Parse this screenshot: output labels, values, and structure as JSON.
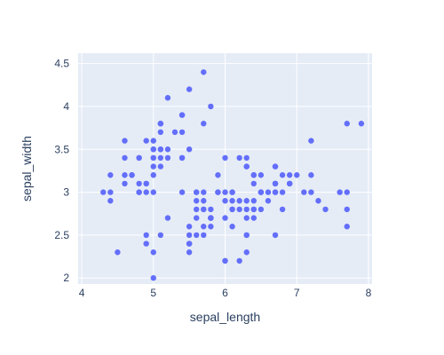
{
  "chart_data": {
    "type": "scatter",
    "title": "",
    "xlabel": "sepal_length",
    "ylabel": "sepal_width",
    "xlim": [
      4.0,
      8.0
    ],
    "ylim": [
      2.0,
      4.5
    ],
    "x_ticks": [
      4,
      5,
      6,
      7,
      8
    ],
    "y_ticks": [
      2,
      2.5,
      3,
      3.5,
      4,
      4.5
    ],
    "x_tick_labels": [
      "4",
      "5",
      "6",
      "7",
      "8"
    ],
    "y_tick_labels": [
      "2",
      "2.5",
      "3",
      "3.5",
      "4",
      "4.5"
    ],
    "grid": true,
    "legend": "none",
    "colors": {
      "plot_background": "#e5ecf6",
      "grid": "#ffffff",
      "marker": "#636efa",
      "text": "#2a3f5f"
    },
    "series": [
      {
        "points": [
          [
            5.1,
            3.5
          ],
          [
            4.9,
            3.0
          ],
          [
            4.7,
            3.2
          ],
          [
            4.6,
            3.1
          ],
          [
            5.0,
            3.6
          ],
          [
            5.4,
            3.9
          ],
          [
            4.6,
            3.4
          ],
          [
            5.0,
            3.4
          ],
          [
            4.4,
            2.9
          ],
          [
            4.9,
            3.1
          ],
          [
            5.4,
            3.7
          ],
          [
            4.8,
            3.4
          ],
          [
            4.8,
            3.0
          ],
          [
            4.3,
            3.0
          ],
          [
            5.8,
            4.0
          ],
          [
            5.7,
            4.4
          ],
          [
            5.4,
            3.9
          ],
          [
            5.1,
            3.5
          ],
          [
            5.7,
            3.8
          ],
          [
            5.1,
            3.8
          ],
          [
            5.4,
            3.4
          ],
          [
            5.1,
            3.7
          ],
          [
            4.6,
            3.6
          ],
          [
            5.1,
            3.3
          ],
          [
            4.8,
            3.4
          ],
          [
            5.0,
            3.0
          ],
          [
            5.0,
            3.4
          ],
          [
            5.2,
            3.5
          ],
          [
            5.2,
            3.4
          ],
          [
            4.7,
            3.2
          ],
          [
            4.8,
            3.1
          ],
          [
            5.4,
            3.4
          ],
          [
            5.2,
            4.1
          ],
          [
            5.5,
            4.2
          ],
          [
            4.9,
            3.1
          ],
          [
            5.0,
            3.2
          ],
          [
            5.5,
            3.5
          ],
          [
            4.9,
            3.6
          ],
          [
            4.4,
            3.0
          ],
          [
            5.1,
            3.4
          ],
          [
            5.0,
            3.5
          ],
          [
            4.5,
            2.3
          ],
          [
            4.4,
            3.2
          ],
          [
            5.0,
            3.5
          ],
          [
            5.1,
            3.8
          ],
          [
            4.8,
            3.0
          ],
          [
            5.1,
            3.8
          ],
          [
            4.6,
            3.2
          ],
          [
            5.3,
            3.7
          ],
          [
            5.0,
            3.3
          ],
          [
            7.0,
            3.2
          ],
          [
            6.4,
            3.2
          ],
          [
            6.9,
            3.1
          ],
          [
            5.5,
            2.3
          ],
          [
            6.5,
            2.8
          ],
          [
            5.7,
            2.8
          ],
          [
            6.3,
            3.3
          ],
          [
            4.9,
            2.4
          ],
          [
            6.6,
            2.9
          ],
          [
            5.2,
            2.7
          ],
          [
            5.0,
            2.0
          ],
          [
            5.9,
            3.0
          ],
          [
            6.0,
            2.2
          ],
          [
            6.1,
            2.9
          ],
          [
            5.6,
            2.9
          ],
          [
            6.7,
            3.1
          ],
          [
            5.6,
            3.0
          ],
          [
            5.8,
            2.7
          ],
          [
            6.2,
            2.2
          ],
          [
            5.6,
            2.5
          ],
          [
            5.9,
            3.2
          ],
          [
            6.1,
            2.8
          ],
          [
            6.3,
            2.5
          ],
          [
            6.1,
            2.8
          ],
          [
            6.4,
            2.9
          ],
          [
            6.6,
            3.0
          ],
          [
            6.8,
            2.8
          ],
          [
            6.7,
            3.0
          ],
          [
            6.0,
            2.9
          ],
          [
            5.7,
            2.6
          ],
          [
            5.5,
            2.4
          ],
          [
            5.5,
            2.4
          ],
          [
            5.8,
            2.7
          ],
          [
            6.0,
            2.7
          ],
          [
            5.4,
            3.0
          ],
          [
            6.0,
            3.4
          ],
          [
            6.7,
            3.1
          ],
          [
            6.3,
            2.3
          ],
          [
            5.6,
            3.0
          ],
          [
            5.5,
            2.5
          ],
          [
            5.5,
            2.6
          ],
          [
            6.1,
            3.0
          ],
          [
            5.8,
            2.6
          ],
          [
            5.0,
            2.3
          ],
          [
            5.6,
            2.7
          ],
          [
            5.7,
            3.0
          ],
          [
            5.7,
            2.9
          ],
          [
            6.2,
            2.9
          ],
          [
            5.1,
            2.5
          ],
          [
            5.7,
            2.8
          ],
          [
            6.3,
            3.3
          ],
          [
            5.8,
            2.7
          ],
          [
            7.1,
            3.0
          ],
          [
            6.3,
            2.9
          ],
          [
            6.5,
            3.0
          ],
          [
            7.6,
            3.0
          ],
          [
            4.9,
            2.5
          ],
          [
            7.3,
            2.9
          ],
          [
            6.7,
            2.5
          ],
          [
            7.2,
            3.6
          ],
          [
            6.5,
            3.2
          ],
          [
            6.4,
            2.7
          ],
          [
            6.8,
            3.0
          ],
          [
            5.7,
            2.5
          ],
          [
            5.8,
            2.8
          ],
          [
            6.4,
            3.2
          ],
          [
            6.5,
            3.0
          ],
          [
            7.7,
            3.8
          ],
          [
            7.7,
            2.6
          ],
          [
            6.0,
            2.2
          ],
          [
            6.9,
            3.2
          ],
          [
            5.6,
            2.8
          ],
          [
            7.7,
            2.8
          ],
          [
            6.3,
            2.7
          ],
          [
            6.7,
            3.3
          ],
          [
            7.2,
            3.2
          ],
          [
            6.2,
            2.8
          ],
          [
            6.1,
            3.0
          ],
          [
            6.4,
            2.8
          ],
          [
            7.2,
            3.0
          ],
          [
            7.4,
            2.8
          ],
          [
            7.9,
            3.8
          ],
          [
            6.4,
            2.8
          ],
          [
            6.3,
            2.8
          ],
          [
            6.1,
            2.6
          ],
          [
            7.7,
            3.0
          ],
          [
            6.3,
            3.4
          ],
          [
            6.4,
            3.1
          ],
          [
            6.0,
            3.0
          ],
          [
            6.9,
            3.1
          ],
          [
            6.7,
            3.1
          ],
          [
            6.9,
            3.1
          ],
          [
            5.8,
            2.7
          ],
          [
            6.8,
            3.2
          ],
          [
            6.7,
            3.3
          ],
          [
            6.7,
            3.0
          ],
          [
            6.3,
            2.5
          ],
          [
            6.5,
            3.0
          ],
          [
            6.2,
            3.4
          ],
          [
            5.9,
            3.0
          ]
        ]
      }
    ]
  }
}
